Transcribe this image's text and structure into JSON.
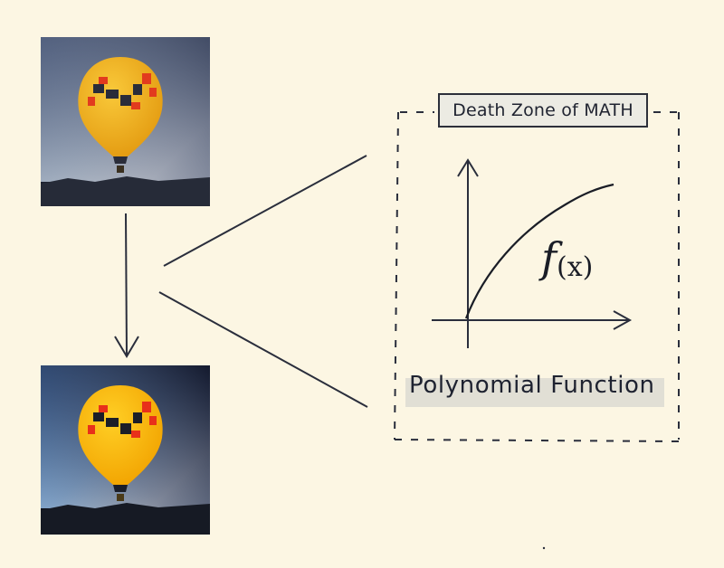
{
  "diagram": {
    "title_box": "Death Zone of MATH",
    "function_label": "f",
    "function_arg": "(x)",
    "caption": "Polynomial Function"
  },
  "images": {
    "top": "hot-air-balloon-original",
    "bottom": "hot-air-balloon-enhanced"
  },
  "colors": {
    "background": "#fcf6e3",
    "ink": "#1f2330",
    "balloon_yellow": "#f4b91e",
    "balloon_red": "#e23b1e",
    "balloon_dark": "#2a2d3a"
  }
}
